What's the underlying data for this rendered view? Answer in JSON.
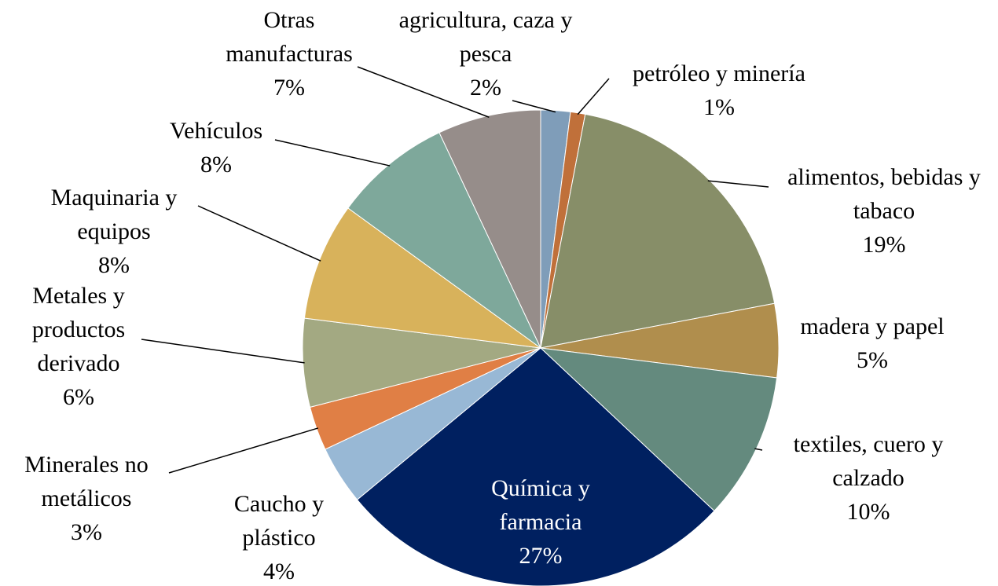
{
  "chart_data": {
    "type": "pie",
    "categories": [
      "agricultura, caza y pesca",
      "petróleo y minería",
      "alimentos, bebidas y tabaco",
      "madera y papel",
      "textiles, cuero y calzado",
      "Química y farmacia",
      "Caucho y plástico",
      "Minerales no metálicos",
      "Metales y productos derivado",
      "Maquinaria y equipos",
      "Vehículos",
      "Otras manufacturas"
    ],
    "values": [
      2,
      1,
      19,
      5,
      10,
      27,
      4,
      3,
      6,
      8,
      8,
      7
    ],
    "value_labels": [
      "2%",
      "1%",
      "19%",
      "5%",
      "10%",
      "27%",
      "4%",
      "3%",
      "6%",
      "8%",
      "8%",
      "7%"
    ],
    "colors": [
      "#7f9db9",
      "#c0703a",
      "#878e68",
      "#b08e4d",
      "#648a7e",
      "#002060",
      "#98b8d5",
      "#e07f45",
      "#a3a982",
      "#d8b25b",
      "#7ea89b",
      "#968d8a"
    ]
  }
}
